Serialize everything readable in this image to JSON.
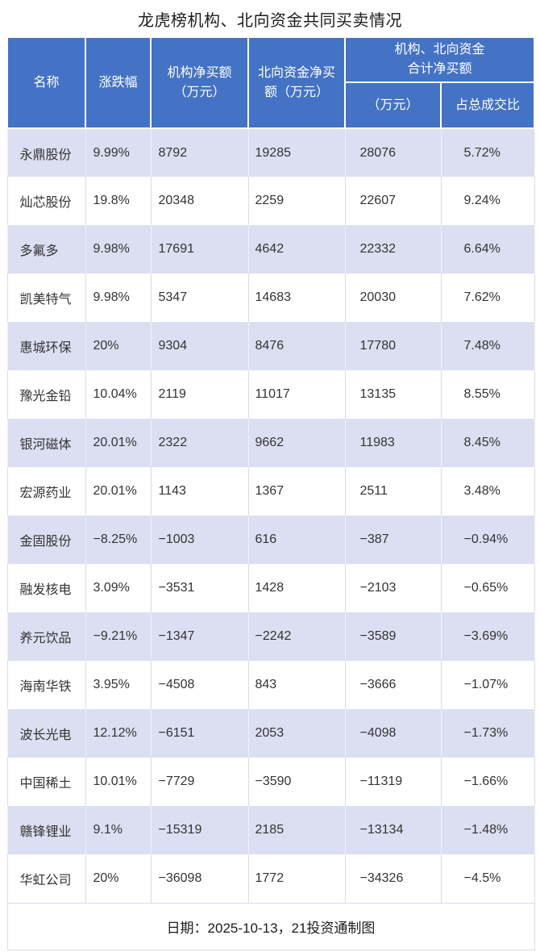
{
  "chart_data": {
    "type": "table",
    "title": "龙虎榜机构、北向资金共同买卖情况",
    "columns": [
      "名称",
      "涨跌幅",
      "机构净买额（万元）",
      "北向资金净买额（万元）",
      "机构、北向资金合计净买额（万元）",
      "机构、北向资金合计净买额 占总成交比"
    ],
    "rows": [
      [
        "永鼎股份",
        "9.99%",
        "8792",
        "19285",
        "28076",
        "5.72%"
      ],
      [
        "灿芯股份",
        "19.8%",
        "20348",
        "2259",
        "22607",
        "9.24%"
      ],
      [
        "多氟多",
        "9.98%",
        "17691",
        "4642",
        "22332",
        "6.64%"
      ],
      [
        "凯美特气",
        "9.98%",
        "5347",
        "14683",
        "20030",
        "7.62%"
      ],
      [
        "惠城环保",
        "20%",
        "9304",
        "8476",
        "17780",
        "7.48%"
      ],
      [
        "豫光金铅",
        "10.04%",
        "2119",
        "11017",
        "13135",
        "8.55%"
      ],
      [
        "银河磁体",
        "20.01%",
        "2322",
        "9662",
        "11983",
        "8.45%"
      ],
      [
        "宏源药业",
        "20.01%",
        "1143",
        "1367",
        "2511",
        "3.48%"
      ],
      [
        "金固股份",
        "−8.25%",
        "−1003",
        "616",
        "−387",
        "−0.94%"
      ],
      [
        "融发核电",
        "3.09%",
        "−3531",
        "1428",
        "−2103",
        "−0.65%"
      ],
      [
        "养元饮品",
        "−9.21%",
        "−1347",
        "−2242",
        "−3589",
        "−3.69%"
      ],
      [
        "海南华铁",
        "3.95%",
        "−4508",
        "843",
        "−3666",
        "−1.07%"
      ],
      [
        "波长光电",
        "12.12%",
        "−6151",
        "2053",
        "−4098",
        "−1.73%"
      ],
      [
        "中国稀土",
        "10.01%",
        "−7729",
        "−3590",
        "−11319",
        "−1.66%"
      ],
      [
        "赣锋锂业",
        "9.1%",
        "−15319",
        "2185",
        "−13134",
        "−1.48%"
      ],
      [
        "华虹公司",
        "20%",
        "−36098",
        "1772",
        "−34326",
        "−4.5%"
      ]
    ],
    "note": "日期：2025-10-13，21投资通制图"
  },
  "display": {
    "header": {
      "name": "名称",
      "change": "涨跌幅",
      "inst": "机构净买额\n（万元）",
      "north": "北向资金净买\n额（万元）",
      "group": "机构、北向资金\n合计净买额",
      "amount": "（万元）",
      "ratio": "占总成交比"
    }
  },
  "colors": {
    "header_bg": "#4472c4",
    "header_text": "#ffffff",
    "row_alt_bg": "#dcdff1",
    "row_bg": "#ffffff",
    "grid_line": "#d9dbe7",
    "body_text": "#333333",
    "title_text": "#1c1c1c"
  }
}
